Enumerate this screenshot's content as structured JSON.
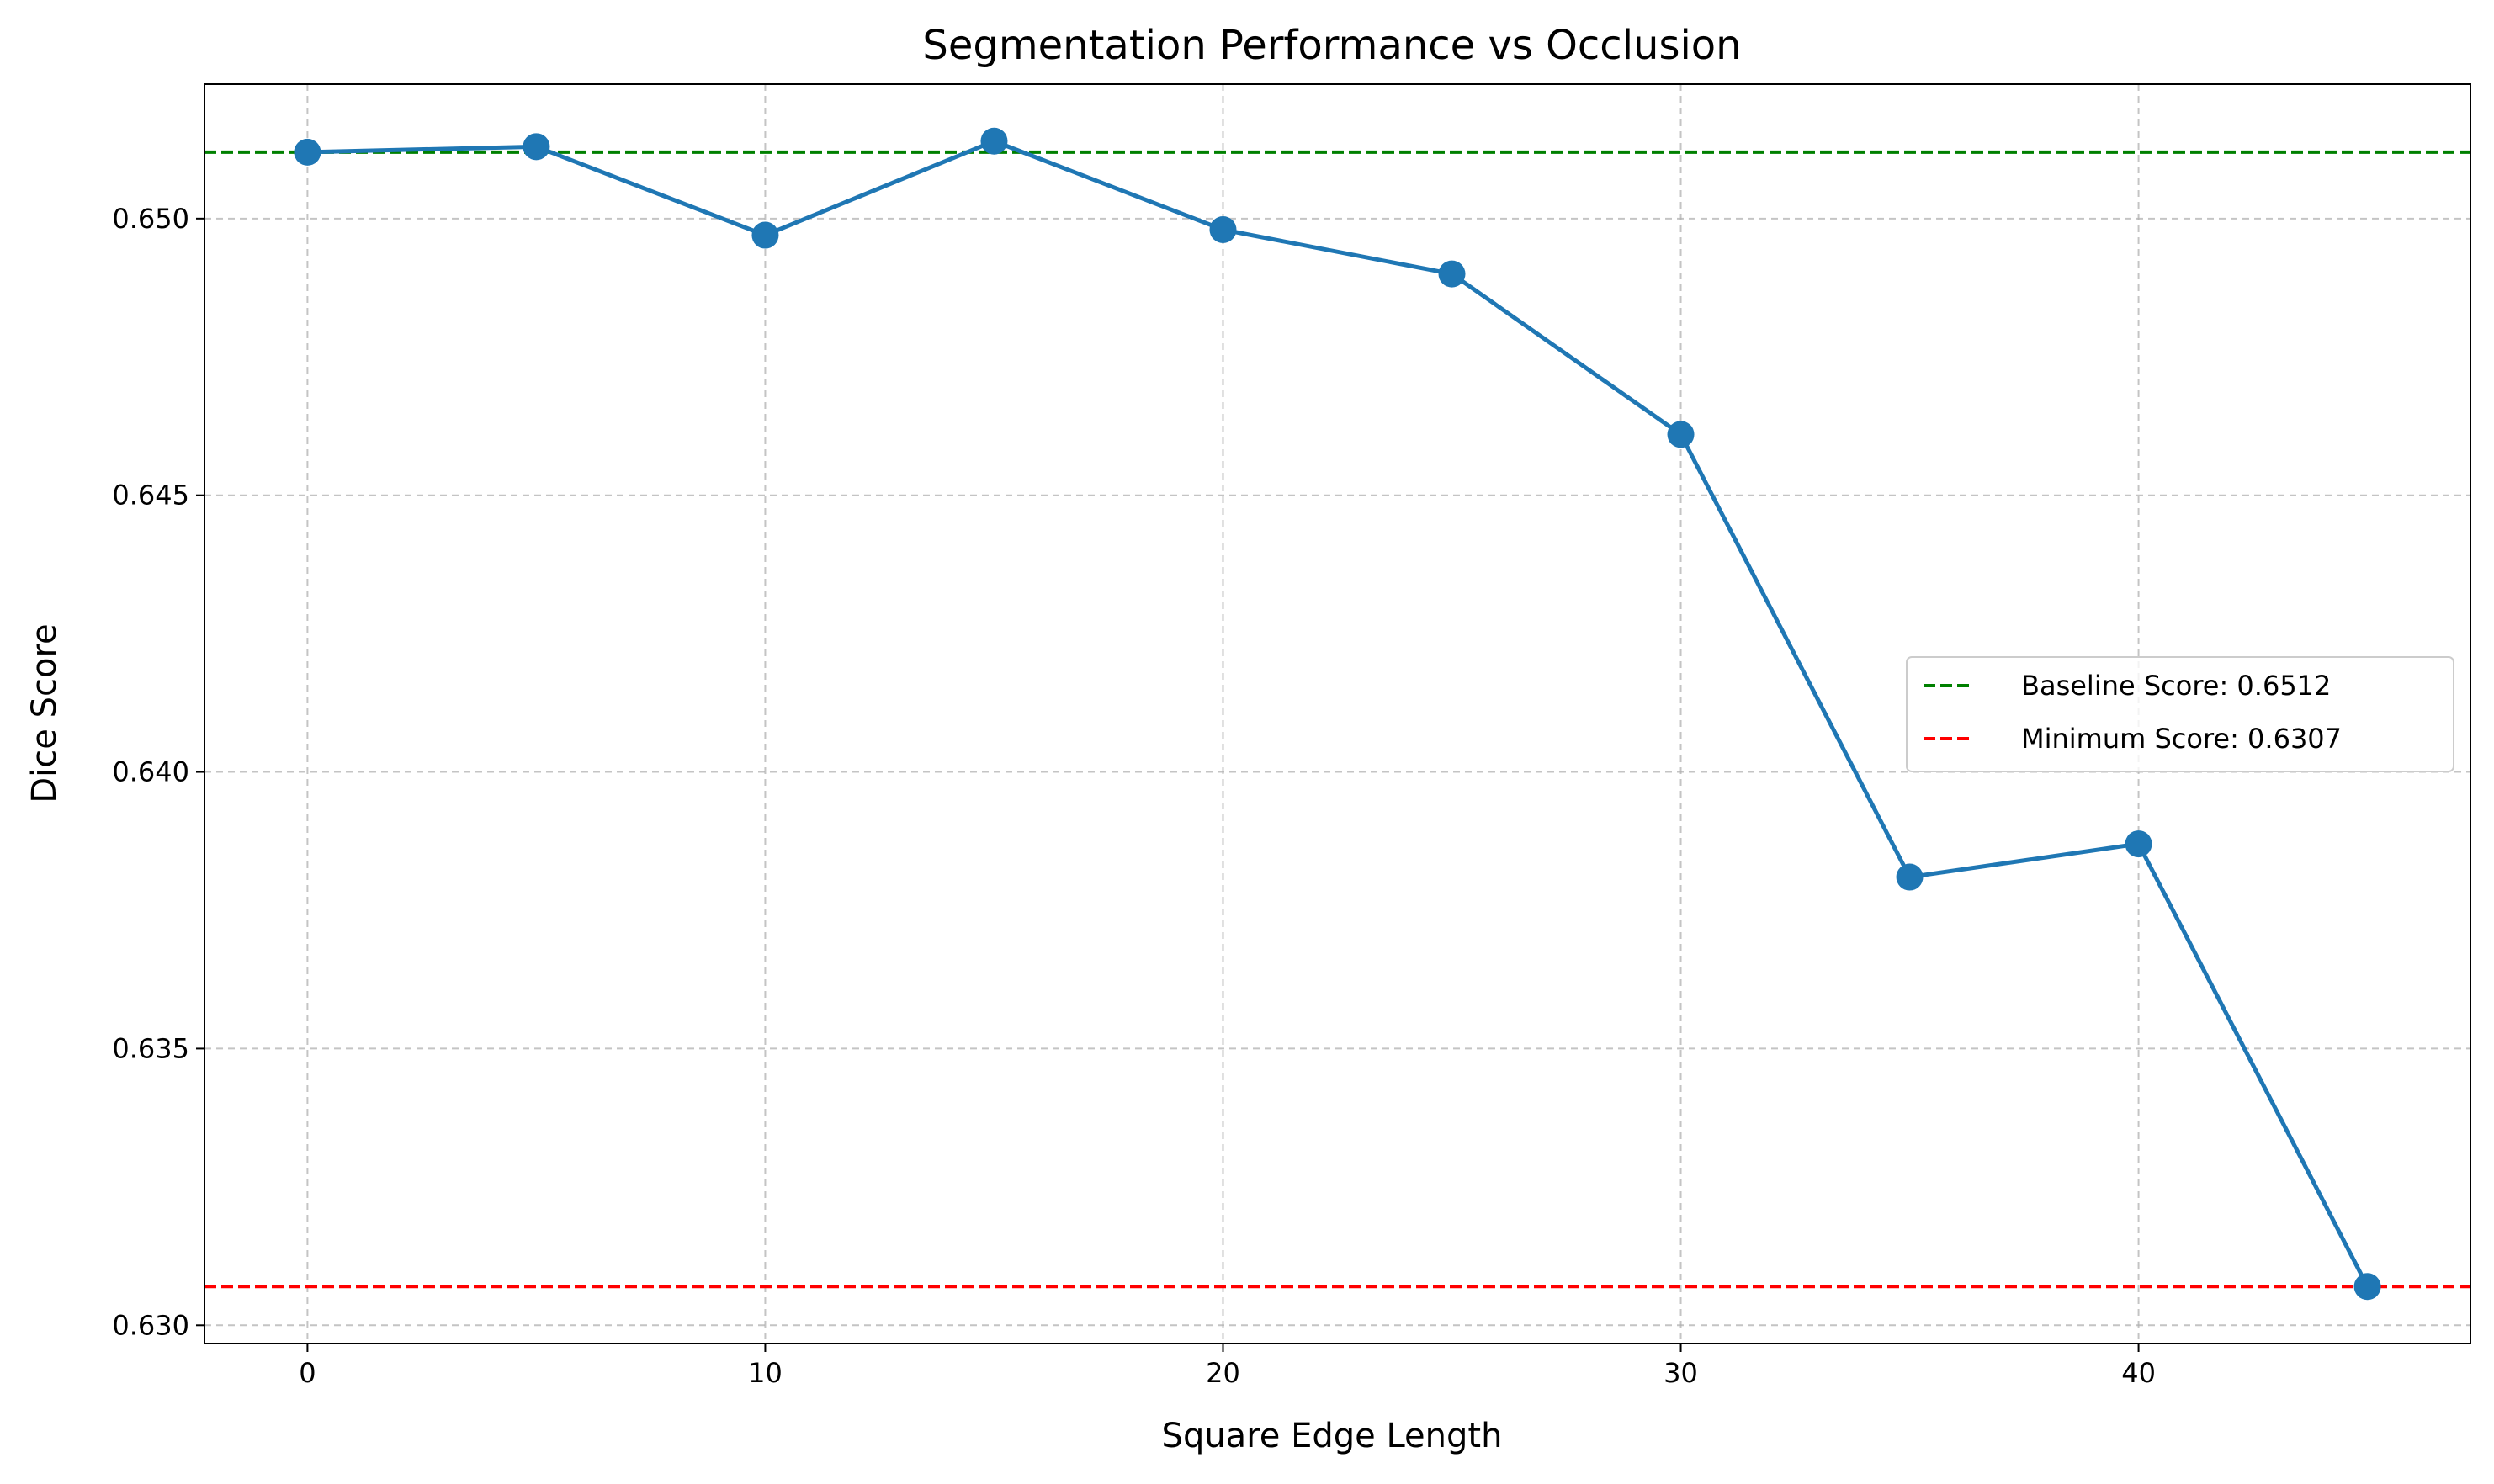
{
  "chart_data": {
    "type": "line",
    "title": "Segmentation Performance vs Occlusion",
    "xlabel": "Square Edge Length",
    "ylabel": "Dice Score",
    "xlim": [
      -2.25,
      47.25
    ],
    "ylim": [
      0.62967,
      0.65243
    ],
    "xticks": [
      0,
      10,
      20,
      30,
      40
    ],
    "yticks": [
      0.63,
      0.635,
      0.64,
      0.645,
      0.65
    ],
    "xtick_labels": [
      "0",
      "10",
      "20",
      "30",
      "40"
    ],
    "ytick_labels": [
      "0.630",
      "0.635",
      "0.640",
      "0.645",
      "0.650"
    ],
    "grid": true,
    "legend_position": "center-right",
    "series": [
      {
        "x": [
          0,
          5,
          10,
          15,
          20,
          25,
          30,
          35,
          40,
          45
        ],
        "values": [
          0.6512,
          0.6513,
          0.6497,
          0.6514,
          0.6498,
          0.649,
          0.6461,
          0.6381,
          0.6387,
          0.6307
        ],
        "color": "#1f77b4"
      }
    ],
    "reference_lines": [
      {
        "name": "Baseline Score: 0.6512",
        "y": 0.6512,
        "color": "#008000"
      },
      {
        "name": "Minimum Score: 0.6307",
        "y": 0.6307,
        "color": "#ff0000"
      }
    ]
  }
}
